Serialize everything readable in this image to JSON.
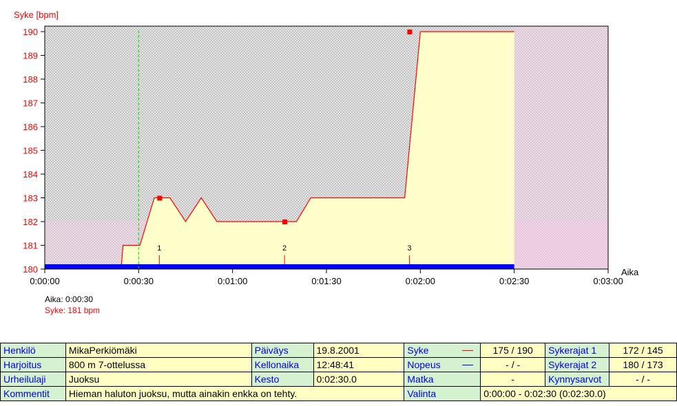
{
  "chart_data": {
    "type": "area",
    "ylabel": "Syke [bpm]",
    "xlabel": "Aika",
    "ylim": [
      180,
      190
    ],
    "xlim_seconds": [
      0,
      180
    ],
    "yticks": [
      "180",
      "181",
      "182",
      "183",
      "184",
      "185",
      "186",
      "187",
      "188",
      "189",
      "190"
    ],
    "xticks": [
      "0:00:00",
      "0:00:30",
      "0:01:00",
      "0:01:30",
      "0:02:00",
      "0:02:30",
      "0:03:00"
    ],
    "series": [
      {
        "name": "Syke",
        "color": "#ff0000",
        "fill": "#ffffcc",
        "points": [
          [
            24.4,
            180
          ],
          [
            25,
            181
          ],
          [
            30.4,
            181
          ],
          [
            35,
            183
          ],
          [
            40,
            183
          ],
          [
            45,
            182
          ],
          [
            50,
            183
          ],
          [
            55,
            182
          ],
          [
            80.4,
            182
          ],
          [
            85,
            183
          ],
          [
            115,
            183
          ],
          [
            120,
            190
          ],
          [
            150,
            190
          ]
        ]
      }
    ],
    "speed_bar": {
      "name": "Nopeus",
      "color": "#0000ff",
      "range": [
        0,
        150
      ]
    },
    "lap_markers": [
      {
        "label": "1",
        "time": 36.6,
        "hr": 183
      },
      {
        "label": "2",
        "time": 76.6,
        "hr": 182
      },
      {
        "label": "3",
        "time": 116.5,
        "hr": 190
      }
    ],
    "cursor": {
      "time": 30,
      "color": "#00dd00"
    },
    "grid": false
  },
  "readout": {
    "time": "Aika: 0:00:30",
    "hr": "Syke: 181 bpm"
  },
  "info": {
    "rows": [
      [
        {
          "l": "Henkilö"
        },
        {
          "v": "MikaPerkiömäki"
        },
        {
          "l": "Päiväys"
        },
        {
          "v": "19.8.2001"
        },
        {
          "l": "Syke",
          "leg": "#ff0000"
        },
        {
          "v": "175 / 190",
          "c": 1
        },
        {
          "l": "Sykerajat 1"
        },
        {
          "v": "172 / 145",
          "c": 1
        }
      ],
      [
        {
          "l": "Harjoitus"
        },
        {
          "v": "800 m 7-ottelussa"
        },
        {
          "l": "Kellonaika"
        },
        {
          "v": "12:48:41"
        },
        {
          "l": "Nopeus",
          "leg": "#0000ff"
        },
        {
          "v": "- / -",
          "c": 1
        },
        {
          "l": "Sykerajat 2"
        },
        {
          "v": "180 / 173",
          "c": 1
        }
      ],
      [
        {
          "l": "Urheilulaji"
        },
        {
          "v": "Juoksu"
        },
        {
          "l": "Kesto"
        },
        {
          "v": "0:02:30.0"
        },
        {
          "l": "Matka"
        },
        {
          "v": "-",
          "c": 1
        },
        {
          "l": "Kynnysarvot"
        },
        {
          "v": "- / -",
          "c": 1
        }
      ],
      [
        {
          "l": "Kommentit"
        },
        {
          "v": "Hieman haluton juoksu, mutta ainakin enkka on tehty.",
          "span": 3
        },
        {
          "l": "Valinta"
        },
        {
          "v": "0:00:00 - 0:02:30 (0:02:30.0)",
          "span": 3
        }
      ]
    ]
  }
}
